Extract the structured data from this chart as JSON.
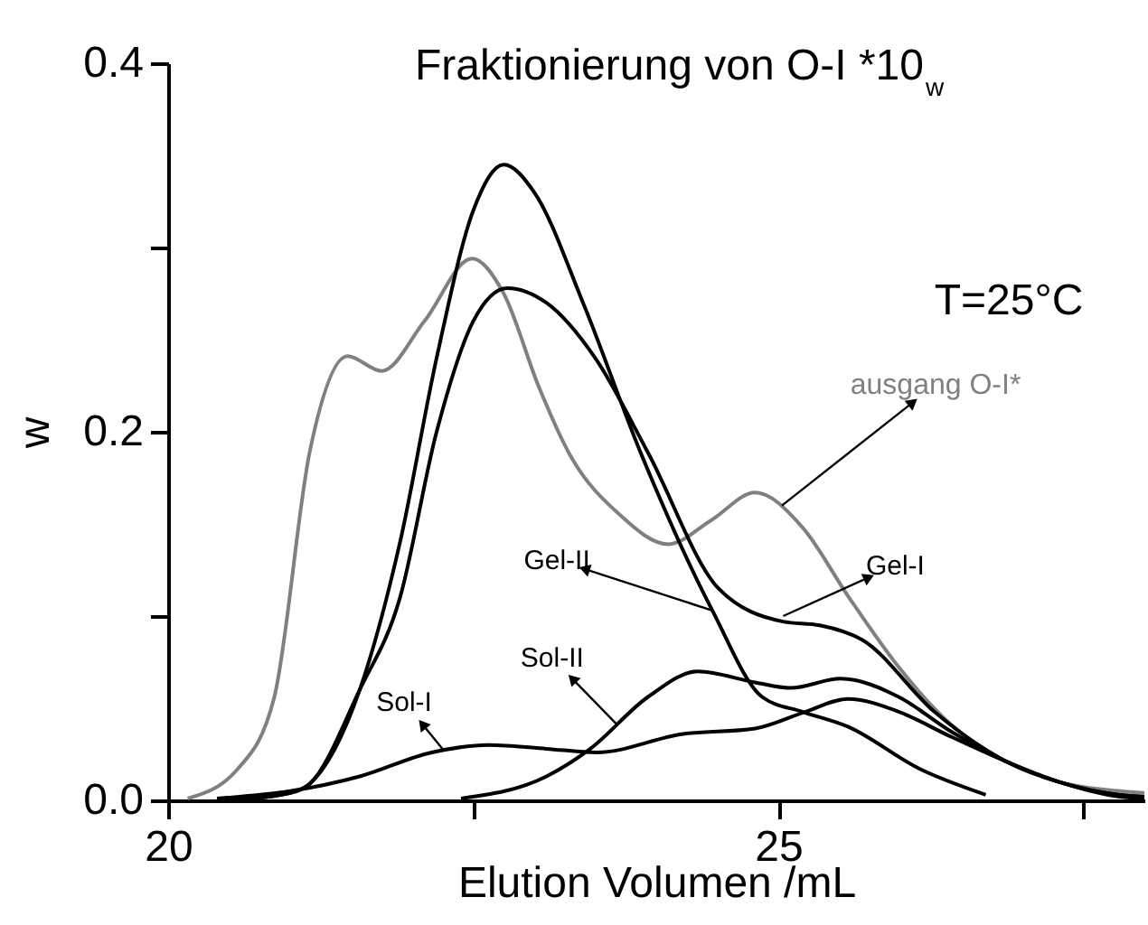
{
  "chart_data": {
    "type": "line",
    "title": "Fraktionierung von O-I *10$_{w}$",
    "xlabel": "Elution Volumen /mL",
    "ylabel": "w",
    "xlim": [
      20,
      28
    ],
    "xticks": [
      20,
      {
        "value": 22.5,
        "label": null
      },
      25,
      {
        "value": 27.5,
        "label": null
      }
    ],
    "ylim": [
      0,
      0.4
    ],
    "yticks": [
      {
        "value": 0,
        "label": "0.0"
      },
      {
        "value": 0.1,
        "label": null
      },
      0.2,
      {
        "value": 0.3,
        "label": null
      },
      0.4
    ],
    "grid": false,
    "marker": "none",
    "line_style": "solid",
    "annotations": [
      "T=25°C",
      {
        "text": "ausgang O-I*",
        "x": 25.03,
        "y": 0.16
      },
      {
        "text": "Gel-II",
        "x": 24.46,
        "y": 0.103
      },
      {
        "text": "Gel-I",
        "x": 25.04,
        "y": 0.1
      },
      {
        "text": "Sol-II",
        "x": 23.68,
        "y": 0.041
      },
      {
        "text": "Sol-I",
        "x": 22.26,
        "y": 0.027
      }
    ],
    "series": [
      {
        "color": "#808080",
        "x": [
          20.16,
          20.57,
          20.87,
          21.16,
          21.47,
          21.75,
          22.1,
          22.49,
          22.75,
          23.04,
          23.28,
          23.7,
          24.1,
          24.45,
          24.81,
          25.2,
          25.57,
          25.99,
          26.4,
          26.87,
          27.3,
          27.8,
          28.0
        ],
        "values": [
          0.001,
          0.017,
          0.056,
          0.189,
          0.241,
          0.233,
          0.26,
          0.294,
          0.275,
          0.224,
          0.189,
          0.155,
          0.139,
          0.152,
          0.167,
          0.148,
          0.111,
          0.072,
          0.042,
          0.021,
          0.01,
          0.005,
          0.004
        ]
      },
      {
        "color": "#000000",
        "x": [
          20.5,
          21.0,
          21.16,
          21.57,
          21.9,
          22.2,
          22.5,
          22.75,
          23.0,
          23.4,
          23.87,
          24.46,
          24.87,
          25.2,
          25.57,
          26.16,
          26.7
        ],
        "values": [
          0.0,
          0.004,
          0.009,
          0.06,
          0.14,
          0.24,
          0.32,
          0.345,
          0.33,
          0.27,
          0.189,
          0.103,
          0.056,
          0.048,
          0.04,
          0.017,
          0.003
        ]
      },
      {
        "color": "#000000",
        "x": [
          20.5,
          21.0,
          21.16,
          21.57,
          21.9,
          22.2,
          22.5,
          22.78,
          23.1,
          23.5,
          23.93,
          24.51,
          25.04,
          25.34,
          25.69,
          26.28,
          26.87,
          27.3,
          27.8,
          28.0
        ],
        "values": [
          0.0,
          0.004,
          0.009,
          0.06,
          0.11,
          0.2,
          0.26,
          0.278,
          0.27,
          0.24,
          0.189,
          0.115,
          0.097,
          0.095,
          0.087,
          0.048,
          0.021,
          0.01,
          0.003,
          0.002
        ]
      },
      {
        "color": "#000000",
        "x": [
          22.4,
          23.1,
          23.46,
          23.93,
          24.34,
          24.81,
          25.1,
          25.51,
          25.99,
          26.4,
          26.87,
          27.3,
          27.8,
          28.0
        ],
        "values": [
          0.001,
          0.013,
          0.028,
          0.056,
          0.07,
          0.064,
          0.061,
          0.066,
          0.056,
          0.038,
          0.021,
          0.01,
          0.002,
          0.001
        ]
      },
      {
        "color": "#000000",
        "x": [
          20.4,
          21.0,
          21.57,
          22.16,
          22.63,
          23.1,
          23.51,
          24.22,
          24.81,
          25.22,
          25.57,
          25.99,
          26.4,
          26.87,
          27.3,
          27.8,
          28.0
        ],
        "values": [
          0.001,
          0.005,
          0.013,
          0.026,
          0.03,
          0.028,
          0.026,
          0.036,
          0.039,
          0.048,
          0.055,
          0.048,
          0.035,
          0.021,
          0.01,
          0.003,
          0.002
        ]
      }
    ]
  }
}
